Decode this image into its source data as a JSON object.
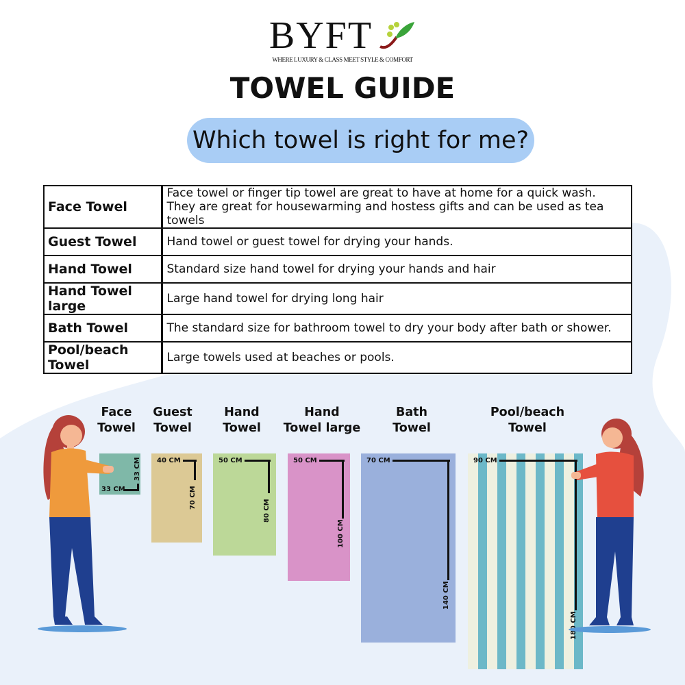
{
  "brand": {
    "name": "BYFT",
    "tagline": "WHERE LUXURY & CLASS MEET STYLE & COMFORT"
  },
  "title": "TOWEL GUIDE",
  "subtitle": "Which towel is right for me?",
  "table": [
    {
      "name": "Face Towel",
      "lines": [
        "Face towel or finger tip towel are great to have at home for a quick wash.",
        "They are great for housewarming and hostess gifts and can be used as tea towels"
      ]
    },
    {
      "name": "Guest Towel",
      "lines": [
        "Hand towel or guest towel for drying your hands."
      ]
    },
    {
      "name": "Hand Towel",
      "lines": [
        "Standard size hand towel for drying your hands and hair"
      ]
    },
    {
      "name": "Hand Towel large",
      "lines": [
        "Large hand towel for drying long hair"
      ]
    },
    {
      "name": "Bath Towel",
      "lines": [
        "The standard size for bathroom towel to dry your body after bath or shower."
      ]
    },
    {
      "name": "Pool/beach Towel",
      "lines": [
        "Large towels used at beaches or pools."
      ]
    }
  ],
  "towels": [
    {
      "l1": "Face",
      "l2": "Towel",
      "w": "33 CM",
      "h": "33 CM",
      "color": "#7fb8a8"
    },
    {
      "l1": "Guest",
      "l2": "Towel",
      "w": "40 CM",
      "h": "70 CM",
      "color": "#dcc995"
    },
    {
      "l1": "Hand",
      "l2": "Towel",
      "w": "50 CM",
      "h": "80 CM",
      "color": "#bcd898"
    },
    {
      "l1": "Hand",
      "l2": "Towel large",
      "w": "50 CM",
      "h": "100 CM",
      "color": "#d993c8"
    },
    {
      "l1": "Bath",
      "l2": "Towel",
      "w": "70 CM",
      "h": "140 CM",
      "color": "#9ab0dc"
    },
    {
      "l1": "Pool/beach",
      "l2": "Towel",
      "w": "90 CM",
      "h": "180 CM",
      "color": "#6cb8c8"
    }
  ]
}
